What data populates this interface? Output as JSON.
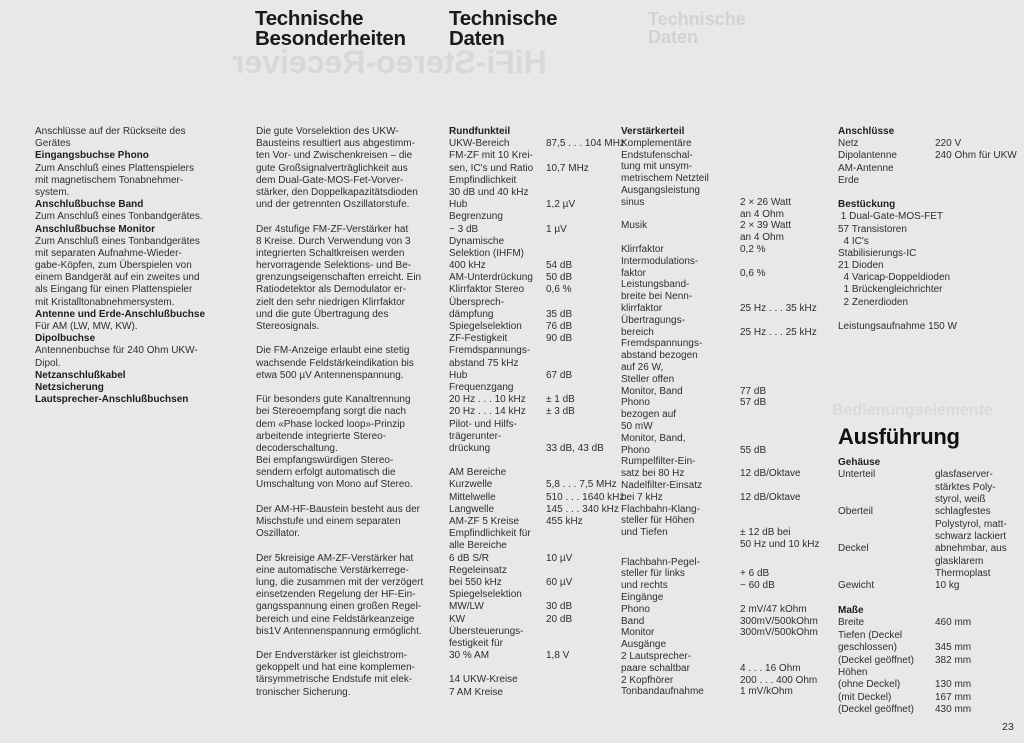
{
  "headings": {
    "besonderheiten": [
      "Technische",
      "Besonderheiten"
    ],
    "daten": [
      "Technische",
      "Daten"
    ],
    "ausfuehrung": "Ausführung"
  },
  "bleed_through": {
    "top_right": [
      "Technische",
      "Daten"
    ],
    "mirrored": "HiFi-Stereo-Receiver",
    "right_edge": "Bedienungselemente"
  },
  "col1": [
    {
      "t": "Anschlüsse auf der Rückseite des",
      "b": false
    },
    {
      "t": "Gerätes",
      "b": false
    },
    {
      "t": "Eingangsbuchse Phono",
      "b": true
    },
    {
      "t": "Zum Anschluß eines Plattenspielers",
      "b": false
    },
    {
      "t": "mit magnetischem Tonabnehmer-",
      "b": false
    },
    {
      "t": "system.",
      "b": false
    },
    {
      "t": "Anschlußbuchse Band",
      "b": true
    },
    {
      "t": "Zum Anschluß eines Tonbandgerätes.",
      "b": false
    },
    {
      "t": "Anschlußbuchse Monitor",
      "b": true
    },
    {
      "t": "Zum Anschluß eines Tonbandgerätes",
      "b": false
    },
    {
      "t": "mit separaten Aufnahme-Wieder-",
      "b": false
    },
    {
      "t": "gabe-Köpfen, zum Überspielen von",
      "b": false
    },
    {
      "t": "einem Bandgerät auf ein zweites und",
      "b": false
    },
    {
      "t": "als Eingang für einen Plattenspieler",
      "b": false
    },
    {
      "t": "mit Kristalltonabnehmersystem.",
      "b": false
    },
    {
      "t": "Antenne und Erde-Anschlußbuchse",
      "b": true
    },
    {
      "t": "Für AM (LW, MW, KW).",
      "b": false
    },
    {
      "t": "Dipolbuchse",
      "b": true
    },
    {
      "t": "Antennenbuchse für 240 Ohm UKW-",
      "b": false
    },
    {
      "t": "Dipol.",
      "b": false
    },
    {
      "t": "Netzanschlußkabel",
      "b": true
    },
    {
      "t": "Netzsicherung",
      "b": true
    },
    {
      "t": "Lautsprecher-Anschlußbuchsen",
      "b": true
    }
  ],
  "col2": [
    [
      "Die gute Vorselektion des UKW-",
      "Bausteins resultiert aus abgestimm-",
      "ten Vor- und Zwischenkreisen – die",
      "gute Großsignalverträglichkeit aus",
      "dem Dual-Gate-MOS-Fet-Vorver-",
      "stärker, den Doppelkapazitätsdioden",
      "und der getrennten Oszillatorstufe."
    ],
    [
      "Der 4stufige FM-ZF-Verstärker hat",
      "8 Kreise. Durch Verwendung von 3",
      "integrierten Schaltkreisen werden",
      "hervorragende Selektions- und Be-",
      "grenzungseigenschaften erreicht. Ein",
      "Ratiodetektor als Demodulator er-",
      "zielt den sehr niedrigen Klirrfaktor",
      "und die gute Übertragung des",
      "Stereosignals."
    ],
    [
      "Die FM-Anzeige erlaubt eine stetig",
      "wachsende Feldstärkeindikation bis",
      "etwa 500 µV Antennenspannung."
    ],
    [
      "Für besonders gute Kanaltrennung",
      "bei Stereoempfang sorgt die nach",
      "dem «Phase locked loop»-Prinzip",
      "arbeitende integrierte Stereo-",
      "decoderschaltung.",
      "Bei empfangswürdigen Stereo-",
      "sendern erfolgt automatisch die",
      "Umschaltung von Mono auf Stereo."
    ],
    [
      "Der AM-HF-Baustein besteht aus der",
      "Mischstufe und einem separaten",
      "Oszillator."
    ],
    [
      "Der 5kreisige AM-ZF-Verstärker hat",
      "eine automatische Verstärkerrege-",
      "lung, die zusammen mit der verzögert",
      "einsetzenden Regelung der HF-Ein-",
      "gangsspannung einen großen Regel-",
      "bereich und eine Feldstärkeanzeige",
      "bis1V Antennenspannung ermöglicht."
    ],
    [
      "Der Endverstärker ist gleichstrom-",
      "gekoppelt und hat eine komplemen-",
      "tärsymmetrische Endstufe mit elek-",
      "tronischer Sicherung."
    ]
  ],
  "col3": [
    {
      "l": "Rundfunkteil",
      "b": true
    },
    {
      "l": "UKW-Bereich",
      "v": "87,5 . . . 104 MHz"
    },
    {
      "l": "FM-ZF mit 10 Krei-"
    },
    {
      "l": "sen, IC's und Ratio",
      "v": "10,7 MHz"
    },
    {
      "l": "Empfindlichkeit"
    },
    {
      "l": "30 dB und 40 kHz"
    },
    {
      "l": "Hub",
      "v": "1,2 µV"
    },
    {
      "l": "Begrenzung"
    },
    {
      "l": "− 3 dB",
      "v": "1 µV"
    },
    {
      "l": "Dynamische"
    },
    {
      "l": "Selektion (IHFM)"
    },
    {
      "l": "400 kHz",
      "v": "54 dB"
    },
    {
      "l": "AM-Unterdrückung",
      "v": "50 dB"
    },
    {
      "l": "Klirrfaktor Stereo",
      "v": "0,6 %"
    },
    {
      "l": "Übersprech-"
    },
    {
      "l": "dämpfung",
      "v": "35 dB"
    },
    {
      "l": "Spiegelselektion",
      "v": "76 dB"
    },
    {
      "l": "ZF-Festigkeit",
      "v": "90 dB"
    },
    {
      "l": "Fremdspannungs-"
    },
    {
      "l": "abstand 75 kHz"
    },
    {
      "l": "Hub",
      "v": "67 dB"
    },
    {
      "l": "Frequenzgang"
    },
    {
      "l": "20 Hz . . . 10 kHz",
      "v": "± 1 dB"
    },
    {
      "l": "20 Hz . . . 14 kHz",
      "v": "± 3 dB"
    },
    {
      "l": "Pilot- und Hilfs-"
    },
    {
      "l": "trägerunter-"
    },
    {
      "l": "drückung",
      "v": "33 dB, 43 dB"
    },
    {
      "gap": true
    },
    {
      "l": "AM Bereiche"
    },
    {
      "l": "Kurzwelle",
      "v": "5,8 . . . 7,5 MHz"
    },
    {
      "l": "Mittelwelle",
      "v": "510 . . . 1640 kHz"
    },
    {
      "l": "Langwelle",
      "v": "145 . . . 340 kHz"
    },
    {
      "l": "AM-ZF 5 Kreise",
      "v": "455 kHz"
    },
    {
      "l": "Empfindlichkeit für"
    },
    {
      "l": "alle Bereiche"
    },
    {
      "l": "6 dB S/R",
      "v": "10 µV"
    },
    {
      "l": "Regeleinsatz"
    },
    {
      "l": "bei 550 kHz",
      "v": "60 µV"
    },
    {
      "l": "Spiegelselektion"
    },
    {
      "l": "MW/LW",
      "v": "30 dB"
    },
    {
      "l": "KW",
      "v": "20 dB"
    },
    {
      "l": "Übersteuerungs-"
    },
    {
      "l": "festigkeit für"
    },
    {
      "l": "30 % AM",
      "v": "1,8 V"
    },
    {
      "gap": true
    },
    {
      "l": "14 UKW-Kreise"
    },
    {
      "l": "7 AM Kreise"
    }
  ],
  "col4": [
    {
      "l": "Verstärkerteil",
      "b": true
    },
    {
      "l": "Komplementäre"
    },
    {
      "l": "Endstufenschal-"
    },
    {
      "l": "tung mit unsym-"
    },
    {
      "l": "metrischem Netzteil"
    },
    {
      "l": "Ausgangsleistung"
    },
    {
      "l": "sinus",
      "v": "2 × 26 Watt"
    },
    {
      "l": "",
      "v": "an 4 Ohm"
    },
    {
      "l": "Musik",
      "v": "2 × 39 Watt"
    },
    {
      "l": "",
      "v": "an 4 Ohm"
    },
    {
      "l": "Klirrfaktor",
      "v": "0,2 %"
    },
    {
      "l": "Intermodulations-"
    },
    {
      "l": "faktor",
      "v": "0,6 %"
    },
    {
      "l": "Leistungsband-"
    },
    {
      "l": "breite bei Nenn-"
    },
    {
      "l": "klirrfaktor",
      "v": "25 Hz . . . 35 kHz"
    },
    {
      "l": "Übertragungs-"
    },
    {
      "l": "bereich",
      "v": "25 Hz . . . 25 kHz"
    },
    {
      "l": "Fremdspannungs-"
    },
    {
      "l": "abstand bezogen"
    },
    {
      "l": "auf 26 W,"
    },
    {
      "l": "Steller offen"
    },
    {
      "l": "Monitor, Band",
      "v": "77 dB"
    },
    {
      "l": "Phono",
      "v": "57 dB"
    },
    {
      "l": "bezogen auf"
    },
    {
      "l": "50 mW"
    },
    {
      "l": "Monitor, Band,"
    },
    {
      "l": "Phono",
      "v": "55 dB"
    },
    {
      "l": "Rumpelfilter-Ein-"
    },
    {
      "l": "satz bei 80 Hz",
      "v": "12 dB/Oktave"
    },
    {
      "l": "Nadelfilter-Einsatz"
    },
    {
      "l": "bei 7 kHz",
      "v": "12 dB/Oktave"
    },
    {
      "l": "Flachbahn-Klang-"
    },
    {
      "l": "steller für Höhen"
    },
    {
      "l": "und Tiefen",
      "v": "± 12 dB bei"
    },
    {
      "l": "",
      "v": "50 Hz und 10 kHz"
    },
    {
      "half": true
    },
    {
      "l": "Flachbahn-Pegel-"
    },
    {
      "l": "steller für links",
      "v": "+ 6 dB"
    },
    {
      "l": "und rechts",
      "v": "− 60 dB"
    },
    {
      "l": "Eingänge"
    },
    {
      "l": "Phono",
      "v": "2 mV/47 kOhm"
    },
    {
      "l": "Band",
      "v": "300mV/500kOhm"
    },
    {
      "l": "Monitor",
      "v": "300mV/500kOhm"
    },
    {
      "l": "Ausgänge"
    },
    {
      "l": "2 Lautsprecher-"
    },
    {
      "l": "paare schaltbar",
      "v": "4 . . . 16 Ohm"
    },
    {
      "l": "2 Kopfhörer",
      "v": "200 . . . 400 Ohm"
    },
    {
      "l": "Tonbandaufnahme",
      "v": "1 mV/kOhm"
    }
  ],
  "col5": [
    {
      "l": "Anschlüsse",
      "b": true
    },
    {
      "l": "Netz",
      "v": "220 V"
    },
    {
      "l": "Dipolantenne",
      "v": "240 Ohm für UKW"
    },
    {
      "l": "AM-Antenne"
    },
    {
      "l": "Erde"
    },
    {
      "gap": true
    },
    {
      "l": "Bestückung",
      "b": true
    },
    {
      "l": " 1 Dual-Gate-MOS-FET"
    },
    {
      "l": "57 Transistoren"
    },
    {
      "l": "  4 IC's"
    },
    {
      "l": "Stabilisierungs-IC"
    },
    {
      "l": "21 Dioden"
    },
    {
      "l": "  4 Varicap-Doppeldioden"
    },
    {
      "l": "  1 Brückengleichrichter"
    },
    {
      "l": "  2 Zenerdioden"
    },
    {
      "gap": true
    },
    {
      "l": "Leistungsaufnahme 150 W"
    }
  ],
  "col6": [
    {
      "l": "Gehäuse",
      "b": true
    },
    {
      "l": "Unterteil",
      "v": "glasfaserver-"
    },
    {
      "l": "",
      "v": "stärktes Poly-"
    },
    {
      "l": "",
      "v": "styrol, weiß"
    },
    {
      "l": "Oberteil",
      "v": "schlagfestes"
    },
    {
      "l": "",
      "v": "Polystyrol, matt-"
    },
    {
      "l": "",
      "v": "schwarz lackiert"
    },
    {
      "l": "Deckel",
      "v": "abnehmbar, aus"
    },
    {
      "l": "",
      "v": "glasklarem"
    },
    {
      "l": "",
      "v": "Thermoplast"
    },
    {
      "l": "Gewicht",
      "v": "10 kg"
    },
    {
      "gap": true
    },
    {
      "l": "Maße",
      "b": true
    },
    {
      "l": "Breite",
      "v": "460 mm"
    },
    {
      "l": "Tiefen (Deckel"
    },
    {
      "l": "geschlossen)",
      "v": "345 mm"
    },
    {
      "l": "(Deckel geöffnet)",
      "v": "382 mm"
    },
    {
      "l": "Höhen"
    },
    {
      "l": "(ohne Deckel)",
      "v": "130 mm"
    },
    {
      "l": "(mit Deckel)",
      "v": "167 mm"
    },
    {
      "l": "(Deckel geöffnet)",
      "v": "430 mm"
    }
  ],
  "page_number": "23"
}
